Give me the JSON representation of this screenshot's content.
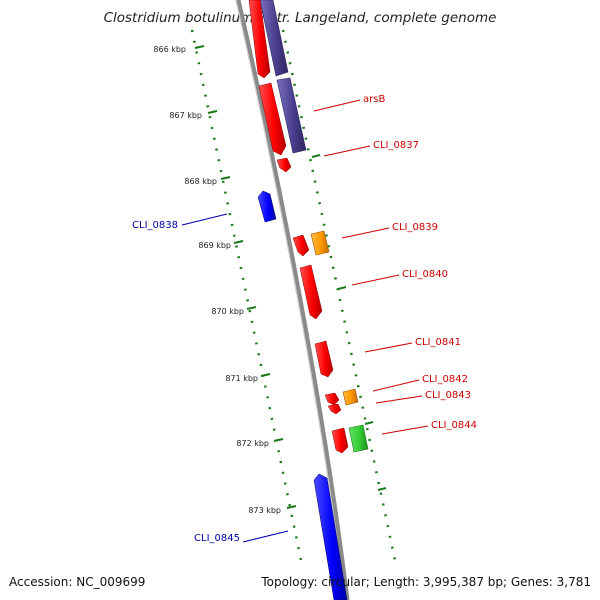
{
  "title": "Clostridium botulinum F str. Langeland, complete genome",
  "footer": {
    "accession": "Accession: NC_009699",
    "topology": "Topology: circular; Length: 3,995,387 bp; Genes: 3,781"
  },
  "colors": {
    "cds_forward": "#ff0000",
    "cds_reverse": "#0000ff",
    "orange_feature": "#ff9900",
    "green_feature": "#33cc33",
    "purple_feature": "#4a3f8f",
    "backbone": "#888888",
    "tick_marks": "#1a7a1a",
    "label_forward": "#cc0000",
    "label_reverse": "#0000aa"
  },
  "ticks": [
    "866 kbp",
    "867 kbp",
    "868 kbp",
    "869 kbp",
    "870 kbp",
    "871 kbp",
    "872 kbp",
    "873 kbp"
  ],
  "gene_labels_forward": [
    "arsB",
    "CLI_0837",
    "CLI_0839",
    "CLI_0840",
    "CLI_0841",
    "CLI_0842",
    "CLI_0843",
    "CLI_0844"
  ],
  "gene_labels_reverse": [
    "CLI_0838",
    "CLI_0845"
  ]
}
